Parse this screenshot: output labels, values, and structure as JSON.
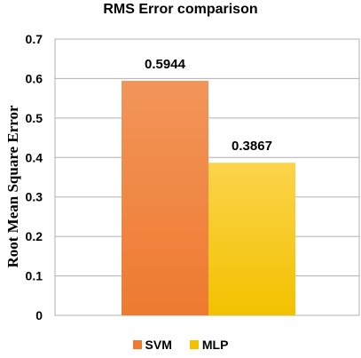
{
  "chart_data": {
    "type": "bar",
    "title": "RMS Error comparison",
    "xlabel": "",
    "ylabel": "Root Mean Square Error",
    "ylim": [
      0,
      0.7
    ],
    "yticks": [
      "0",
      "0.1",
      "0.2",
      "0.3",
      "0.4",
      "0.5",
      "0.6",
      "0.7"
    ],
    "grid": true,
    "legend_position": "bottom",
    "series": [
      {
        "name": "SVM",
        "values": [
          0.5944
        ],
        "label": "0.5944",
        "color": "#ee7a30",
        "color_light": "#f2955a"
      },
      {
        "name": "MLP",
        "values": [
          0.3867
        ],
        "label": "0.3867",
        "color": "#f2c200",
        "color_light": "#fcd34a"
      }
    ]
  }
}
